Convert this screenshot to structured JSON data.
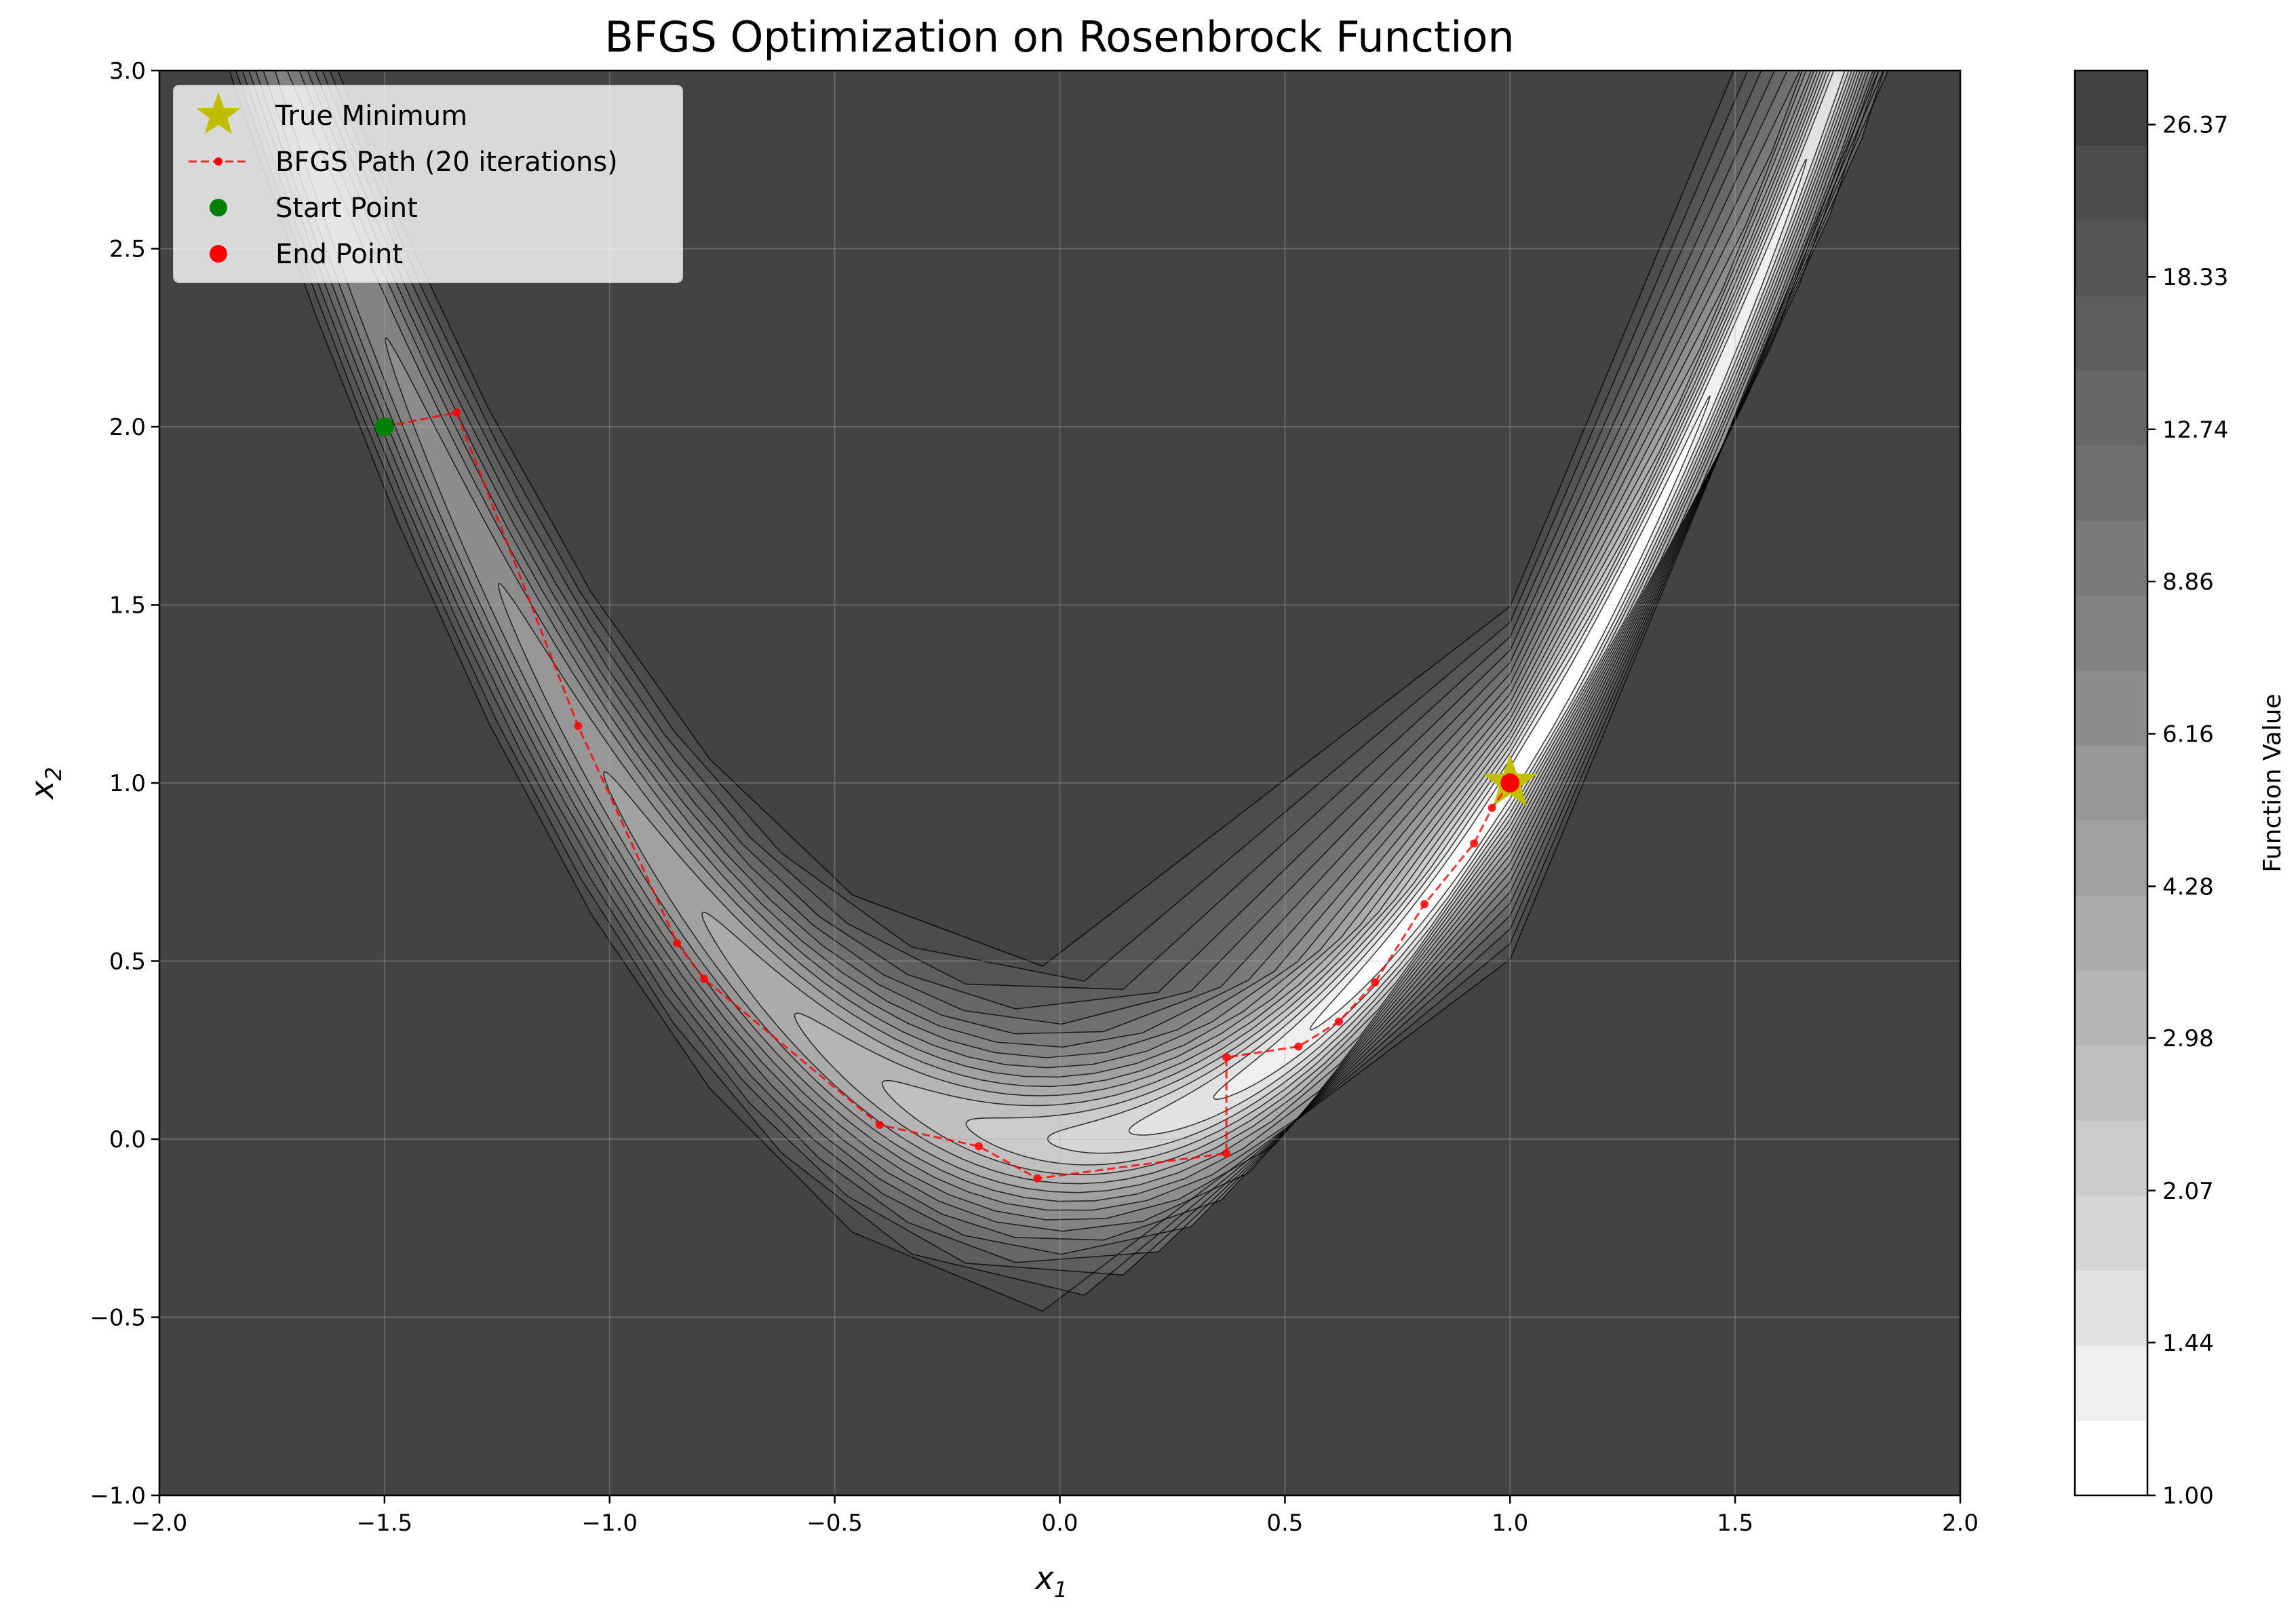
{
  "chart_data": {
    "type": "contour",
    "title": "BFGS Optimization on Rosenbrock Function",
    "xlabel": "x",
    "xlabel_sub": "1",
    "ylabel": "x",
    "ylabel_sub": "2",
    "xlim": [
      -2.0,
      2.0
    ],
    "ylim": [
      -1.0,
      3.0
    ],
    "x_ticks": [
      "−2.0",
      "−1.5",
      "−1.0",
      "−0.5",
      "0.0",
      "0.5",
      "1.0",
      "1.5",
      "2.0"
    ],
    "x_tick_values": [
      -2.0,
      -1.5,
      -1.0,
      -0.5,
      0.0,
      0.5,
      1.0,
      1.5,
      2.0
    ],
    "y_ticks": [
      "−1.0",
      "−0.5",
      "0.0",
      "0.5",
      "1.0",
      "1.5",
      "2.0",
      "2.5",
      "3.0"
    ],
    "y_tick_values": [
      -1.0,
      -0.5,
      0.0,
      0.5,
      1.0,
      1.5,
      2.0,
      2.5,
      3.0
    ],
    "grid": true,
    "legend_position": "upper-left",
    "colorbar": {
      "label": "Function Value",
      "tick_labels": [
        "1.00",
        "1.44",
        "2.07",
        "2.98",
        "4.28",
        "6.16",
        "8.86",
        "12.74",
        "18.33",
        "26.37"
      ],
      "tick_values": [
        1.0,
        1.44,
        2.07,
        2.98,
        4.28,
        6.16,
        8.86,
        12.74,
        18.33,
        26.37
      ],
      "n_bands": 19
    },
    "series": [
      {
        "name": "True Minimum",
        "marker": "star",
        "color": "#bfbf00",
        "points": [
          [
            1.0,
            1.0
          ]
        ]
      },
      {
        "name": "BFGS Path (20 iterations)",
        "marker": "dot-dashed-line",
        "color": "#ff0000",
        "points": [
          [
            -1.5,
            2.0
          ],
          [
            -1.34,
            2.04
          ],
          [
            -1.07,
            1.16
          ],
          [
            -0.85,
            0.55
          ],
          [
            -0.79,
            0.45
          ],
          [
            -0.4,
            0.04
          ],
          [
            -0.18,
            -0.02
          ],
          [
            -0.05,
            -0.11
          ],
          [
            0.37,
            -0.04
          ],
          [
            0.37,
            0.23
          ],
          [
            0.53,
            0.26
          ],
          [
            0.62,
            0.33
          ],
          [
            0.7,
            0.44
          ],
          [
            0.81,
            0.66
          ],
          [
            0.92,
            0.83
          ],
          [
            0.96,
            0.93
          ],
          [
            1.0,
            1.0
          ]
        ]
      },
      {
        "name": "Start Point",
        "marker": "circle",
        "color": "#008000",
        "points": [
          [
            -1.5,
            2.0
          ]
        ]
      },
      {
        "name": "End Point",
        "marker": "circle",
        "color": "#ff0000",
        "points": [
          [
            1.0,
            1.0
          ]
        ]
      }
    ]
  }
}
